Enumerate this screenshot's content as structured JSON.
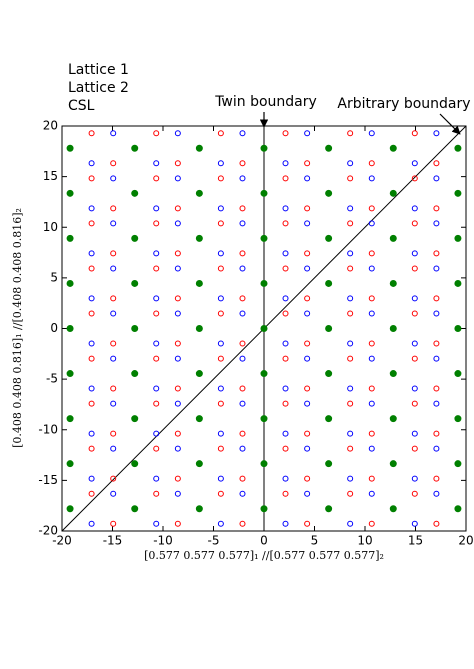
{
  "chart_data": {
    "type": "scatter",
    "xlabel": "[0.577 0.577 0.577]₁ //[0.577 0.577 0.577]₂",
    "ylabel": "[0.408 0.408 0.816]₁ //[0.408 0.408 0.816]₂",
    "xlim": [
      -20,
      20
    ],
    "ylim": [
      -20,
      20
    ],
    "xticks": [
      -20,
      -15,
      -10,
      -5,
      0,
      5,
      10,
      15,
      20
    ],
    "yticks": [
      -20,
      -15,
      -10,
      -5,
      0,
      5,
      10,
      15,
      20
    ],
    "legend": "upper left",
    "annotations": [
      "Twin boundary",
      "Arbitrary boundary"
    ],
    "lines": [
      {
        "color": "#000000",
        "x": [
          0,
          0
        ],
        "y": [
          -20,
          20
        ]
      },
      {
        "color": "#000000",
        "x": [
          -20,
          20
        ],
        "y": [
          -20,
          20
        ]
      }
    ],
    "series": [
      {
        "name": "Lattice 1",
        "color": "#0000ff",
        "marker": "open",
        "x": [
          -14.93,
          -8.53,
          -2.13,
          4.27,
          10.67,
          17.07,
          -17.07,
          -10.67,
          -4.27,
          2.13,
          8.53,
          14.93,
          -14.93,
          -8.53,
          -2.13,
          4.27,
          10.67,
          17.07,
          -17.07,
          -10.67,
          -4.27,
          2.13,
          8.53,
          14.93,
          -14.93,
          -8.53,
          -2.13,
          4.27,
          10.67,
          17.07,
          -17.07,
          -10.67,
          -4.27,
          2.13,
          8.53,
          14.93,
          -14.93,
          -8.53,
          -2.13,
          4.27,
          10.67,
          17.07,
          -17.07,
          -10.67,
          -4.27,
          2.13,
          8.53,
          14.93,
          -14.93,
          -8.53,
          -2.13,
          4.27,
          10.67,
          17.07,
          -17.07,
          -10.67,
          -4.27,
          2.13,
          8.53,
          14.93,
          -14.93,
          -8.53,
          -2.13,
          4.27,
          10.67,
          17.07,
          -17.07,
          -10.67,
          -4.27,
          2.13,
          8.53,
          14.93,
          -14.93,
          -8.53,
          -2.13,
          4.27,
          10.67,
          17.07,
          -17.07,
          -10.67,
          -4.27,
          2.13,
          8.53,
          14.93,
          -14.93,
          -8.53,
          -2.13,
          4.27,
          10.67,
          17.07,
          -17.07,
          -10.67,
          -4.27,
          2.13,
          8.53,
          14.93,
          -14.93,
          -8.53,
          -2.13,
          4.27,
          10.67,
          17.07,
          -17.07,
          -10.67,
          -4.27,
          2.13,
          8.53,
          14.93
        ],
        "values": [
          19.28,
          19.28,
          19.28,
          19.28,
          19.28,
          19.28,
          16.32,
          16.32,
          16.32,
          16.32,
          16.32,
          16.32,
          14.83,
          14.83,
          14.83,
          14.83,
          14.83,
          14.83,
          11.87,
          11.87,
          11.87,
          11.87,
          11.87,
          11.87,
          10.38,
          10.38,
          10.38,
          10.38,
          10.38,
          10.38,
          7.42,
          7.42,
          7.42,
          7.42,
          7.42,
          7.42,
          5.93,
          5.93,
          5.93,
          5.93,
          5.93,
          5.93,
          2.97,
          2.97,
          2.97,
          2.97,
          2.97,
          2.97,
          1.48,
          1.48,
          1.48,
          1.48,
          1.48,
          1.48,
          -1.48,
          -1.48,
          -1.48,
          -1.48,
          -1.48,
          -1.48,
          -2.97,
          -2.97,
          -2.97,
          -2.97,
          -2.97,
          -2.97,
          -5.93,
          -5.93,
          -5.93,
          -5.93,
          -5.93,
          -5.93,
          -7.42,
          -7.42,
          -7.42,
          -7.42,
          -7.42,
          -7.42,
          -10.38,
          -10.38,
          -10.38,
          -10.38,
          -10.38,
          -10.38,
          -11.87,
          -11.87,
          -11.87,
          -11.87,
          -11.87,
          -11.87,
          -14.83,
          -14.83,
          -14.83,
          -14.83,
          -14.83,
          -14.83,
          -16.32,
          -16.32,
          -16.32,
          -16.32,
          -16.32,
          -16.32,
          -19.28,
          -19.28,
          -19.28,
          -19.28,
          -19.28,
          -19.28
        ]
      },
      {
        "name": "Lattice 2",
        "color": "#ff0000",
        "marker": "open",
        "x": [
          -17.07,
          -10.67,
          -4.27,
          2.13,
          8.53,
          14.93,
          -14.93,
          -8.53,
          -2.13,
          4.27,
          10.67,
          17.07,
          -17.07,
          -10.67,
          -4.27,
          2.13,
          8.53,
          14.93,
          -14.93,
          -8.53,
          -2.13,
          4.27,
          10.67,
          17.07,
          -17.07,
          -10.67,
          -4.27,
          2.13,
          8.53,
          14.93,
          -14.93,
          -8.53,
          -2.13,
          4.27,
          10.67,
          17.07,
          -17.07,
          -10.67,
          -4.27,
          2.13,
          8.53,
          14.93,
          -14.93,
          -8.53,
          -2.13,
          4.27,
          10.67,
          17.07,
          -17.07,
          -10.67,
          -4.27,
          2.13,
          8.53,
          14.93,
          -14.93,
          -8.53,
          -2.13,
          4.27,
          10.67,
          17.07,
          -17.07,
          -10.67,
          -4.27,
          2.13,
          8.53,
          14.93,
          -14.93,
          -8.53,
          -2.13,
          4.27,
          10.67,
          17.07,
          -17.07,
          -10.67,
          -4.27,
          2.13,
          8.53,
          14.93,
          -14.93,
          -8.53,
          -2.13,
          4.27,
          10.67,
          17.07,
          -17.07,
          -10.67,
          -4.27,
          2.13,
          8.53,
          14.93,
          -14.93,
          -8.53,
          -2.13,
          4.27,
          10.67,
          17.07,
          -17.07,
          -10.67,
          -4.27,
          2.13,
          8.53,
          14.93,
          -14.93,
          -8.53,
          -2.13,
          4.27,
          10.67,
          17.07
        ],
        "values": [
          19.28,
          19.28,
          19.28,
          19.28,
          19.28,
          19.28,
          16.32,
          16.32,
          16.32,
          16.32,
          16.32,
          16.32,
          14.83,
          14.83,
          14.83,
          14.83,
          14.83,
          14.83,
          11.87,
          11.87,
          11.87,
          11.87,
          11.87,
          11.87,
          10.38,
          10.38,
          10.38,
          10.38,
          10.38,
          10.38,
          7.42,
          7.42,
          7.42,
          7.42,
          7.42,
          7.42,
          5.93,
          5.93,
          5.93,
          5.93,
          5.93,
          5.93,
          2.97,
          2.97,
          2.97,
          2.97,
          2.97,
          2.97,
          1.48,
          1.48,
          1.48,
          1.48,
          1.48,
          1.48,
          -1.48,
          -1.48,
          -1.48,
          -1.48,
          -1.48,
          -1.48,
          -2.97,
          -2.97,
          -2.97,
          -2.97,
          -2.97,
          -2.97,
          -5.93,
          -5.93,
          -5.93,
          -5.93,
          -5.93,
          -5.93,
          -7.42,
          -7.42,
          -7.42,
          -7.42,
          -7.42,
          -7.42,
          -10.38,
          -10.38,
          -10.38,
          -10.38,
          -10.38,
          -10.38,
          -11.87,
          -11.87,
          -11.87,
          -11.87,
          -11.87,
          -11.87,
          -14.83,
          -14.83,
          -14.83,
          -14.83,
          -14.83,
          -14.83,
          -16.32,
          -16.32,
          -16.32,
          -16.32,
          -16.32,
          -16.32,
          -19.28,
          -19.28,
          -19.28,
          -19.28,
          -19.28,
          -19.28
        ]
      },
      {
        "name": "CSL",
        "color": "#008000",
        "marker": "filled",
        "x": [
          -19.2,
          -12.8,
          -6.4,
          0,
          6.4,
          12.8,
          19.2,
          -19.2,
          -12.8,
          -6.4,
          0,
          6.4,
          12.8,
          19.2,
          -19.2,
          -12.8,
          -6.4,
          0,
          6.4,
          12.8,
          19.2,
          -19.2,
          -12.8,
          -6.4,
          0,
          6.4,
          12.8,
          19.2,
          -19.2,
          -12.8,
          -6.4,
          0,
          6.4,
          12.8,
          19.2,
          -19.2,
          -12.8,
          -6.4,
          0,
          6.4,
          12.8,
          19.2,
          -19.2,
          -12.8,
          -6.4,
          0,
          6.4,
          12.8,
          19.2,
          -19.2,
          -12.8,
          -6.4,
          0,
          6.4,
          12.8,
          19.2,
          -19.2,
          -12.8,
          -6.4,
          0,
          6.4,
          12.8,
          19.2
        ],
        "values": [
          17.8,
          17.8,
          17.8,
          17.8,
          17.8,
          17.8,
          17.8,
          13.35,
          13.35,
          13.35,
          13.35,
          13.35,
          13.35,
          13.35,
          8.9,
          8.9,
          8.9,
          8.9,
          8.9,
          8.9,
          8.9,
          4.45,
          4.45,
          4.45,
          4.45,
          4.45,
          4.45,
          4.45,
          0,
          0,
          0,
          0,
          0,
          0,
          0,
          -4.45,
          -4.45,
          -4.45,
          -4.45,
          -4.45,
          -4.45,
          -4.45,
          -8.9,
          -8.9,
          -8.9,
          -8.9,
          -8.9,
          -8.9,
          -8.9,
          -13.35,
          -13.35,
          -13.35,
          -13.35,
          -13.35,
          -13.35,
          -13.35,
          -17.8,
          -17.8,
          -17.8,
          -17.8,
          -17.8,
          -17.8,
          -17.8
        ]
      }
    ]
  }
}
